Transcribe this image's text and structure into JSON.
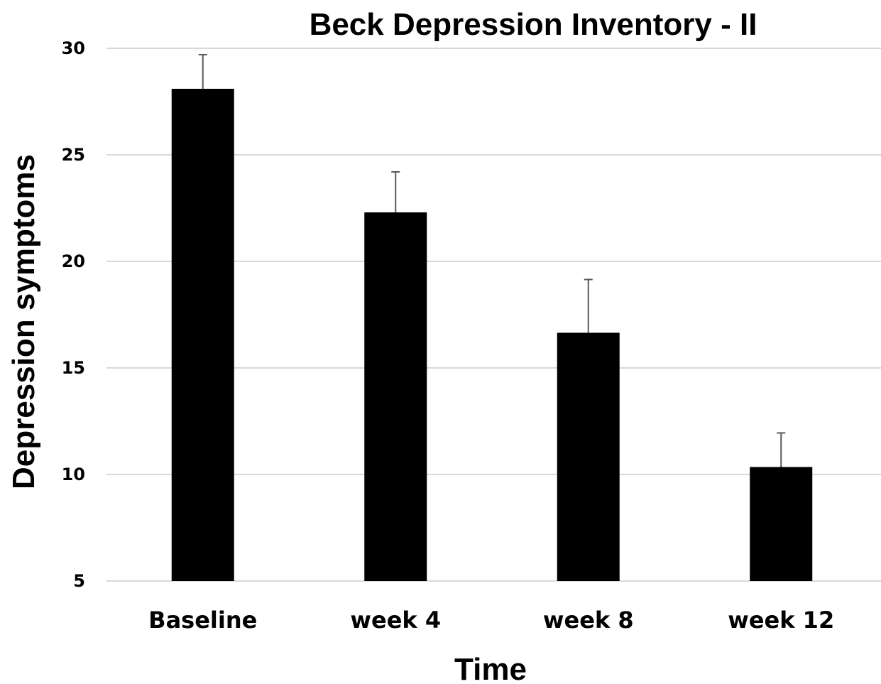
{
  "chart_data": {
    "type": "bar",
    "title": "Beck Depression Inventory - II",
    "xlabel": "Time",
    "ylabel": "Depression symptoms",
    "categories": [
      "Baseline",
      "week 4",
      "week 8",
      "week 12"
    ],
    "values": [
      28.1,
      22.3,
      16.65,
      10.35
    ],
    "error_upper": [
      1.6,
      1.9,
      2.5,
      1.6
    ],
    "ylim": [
      5,
      30
    ],
    "yticks": [
      "5",
      "10",
      "15",
      "20",
      "25",
      "30"
    ],
    "grid": true,
    "legend": "none",
    "colors": {
      "bar": "#000000",
      "errbar": "#595959",
      "grid": "#d9d9d9"
    }
  }
}
